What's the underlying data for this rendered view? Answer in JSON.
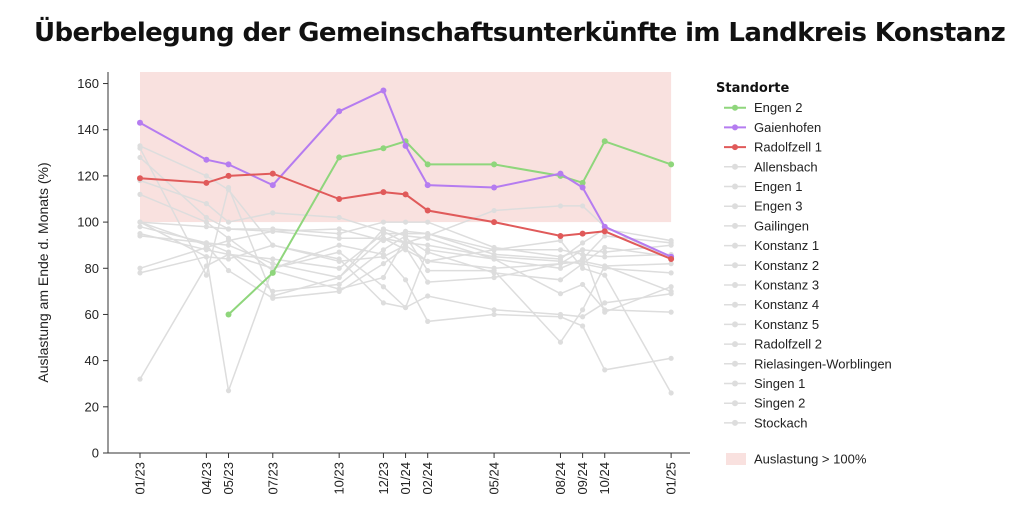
{
  "chart_data": {
    "type": "line",
    "title": "Überbelegung der Gemeinschaftsunterkünfte im Landkreis Konstanz",
    "ylabel": "Auslastung am Ende d. Monats (%)",
    "xlabel": "",
    "ylim": [
      0,
      165
    ],
    "yticks": [
      0,
      20,
      40,
      60,
      80,
      100,
      120,
      140,
      160
    ],
    "x": [
      "01/23",
      "04/23",
      "05/23",
      "07/23",
      "10/23",
      "12/23",
      "01/24",
      "02/24",
      "05/24",
      "08/24",
      "09/24",
      "10/24",
      "01/25"
    ],
    "x_month_index": [
      0,
      3,
      4,
      6,
      9,
      11,
      12,
      13,
      16,
      19,
      20,
      21,
      24
    ],
    "overcapacity_band": {
      "from": 100,
      "to": 165,
      "color": "#f9e1df",
      "label": "Auslastung > 100%"
    },
    "legend_title": "Standorte",
    "series": [
      {
        "name": "Allensbach",
        "color": "#dddddd",
        "highlight": false,
        "values": [
          100,
          98,
          97,
          97,
          95,
          100,
          100,
          100,
          89,
          85,
          88,
          87,
          90
        ]
      },
      {
        "name": "Engen 1",
        "color": "#dddddd",
        "highlight": false,
        "values": [
          95,
          88,
          86,
          84,
          80,
          95,
          95,
          95,
          88,
          88,
          86,
          85,
          86
        ]
      },
      {
        "name": "Engen 3",
        "color": "#dddddd",
        "highlight": false,
        "values": [
          128,
          102,
          97,
          96,
          93,
          93,
          91,
          90,
          85,
          83,
          82,
          80,
          78
        ]
      },
      {
        "name": "Gailingen",
        "color": "#dddddd",
        "highlight": false,
        "values": [
          98,
          91,
          90,
          82,
          76,
          97,
          94,
          93,
          84,
          80,
          84,
          94,
          91
        ]
      },
      {
        "name": "Konstanz 1",
        "color": "#dddddd",
        "highlight": false,
        "values": [
          80,
          89,
          92,
          96,
          97,
          92,
          96,
          95,
          86,
          84,
          91,
          97,
          92
        ]
      },
      {
        "name": "Konstanz 2",
        "color": "#dddddd",
        "highlight": false,
        "values": [
          78,
          85,
          84,
          90,
          83,
          85,
          90,
          83,
          80,
          82,
          83,
          81,
          82
        ]
      },
      {
        "name": "Konstanz 3",
        "color": "#dddddd",
        "highlight": false,
        "values": [
          112,
          100,
          93,
          79,
          71,
          76,
          93,
          87,
          78,
          75,
          82,
          89,
          85
        ]
      },
      {
        "name": "Konstanz 4",
        "color": "#dddddd",
        "highlight": false,
        "values": [
          32,
          81,
          86,
          80,
          87,
          72,
          63,
          68,
          62,
          60,
          59,
          65,
          69
        ]
      },
      {
        "name": "Konstanz 5",
        "color": "#dddddd",
        "highlight": false,
        "values": [
          118,
          108,
          100,
          104,
          102,
          96,
          91,
          94,
          105,
          107,
          107,
          98,
          84
        ]
      },
      {
        "name": "Radolfzell 2",
        "color": "#dddddd",
        "highlight": false,
        "values": [
          94,
          91,
          87,
          70,
          73,
          88,
          94,
          79,
          79,
          48,
          62,
          81,
          70
        ]
      },
      {
        "name": "Rielasingen-Worblingen",
        "color": "#dddddd",
        "highlight": false,
        "values": [
          100,
          90,
          79,
          67,
          70,
          82,
          89,
          74,
          76,
          82,
          88,
          61,
          72
        ]
      },
      {
        "name": "Singen 1",
        "color": "#dddddd",
        "highlight": false,
        "values": [
          100,
          85,
          27,
          80,
          90,
          86,
          75,
          57,
          60,
          59,
          55,
          36,
          41
        ]
      },
      {
        "name": "Singen 2",
        "color": "#dddddd",
        "highlight": false,
        "values": [
          133,
          120,
          114,
          90,
          84,
          65,
          63,
          88,
          84,
          69,
          73,
          62,
          61
        ]
      },
      {
        "name": "Stockach",
        "color": "#dddddd",
        "highlight": false,
        "values": [
          132,
          77,
          115,
          68,
          76,
          93,
          88,
          83,
          88,
          92,
          80,
          77,
          26
        ]
      },
      {
        "name": "Engen 2",
        "color": "#8fd67c",
        "highlight": true,
        "values": [
          null,
          null,
          60,
          78,
          128,
          132,
          135,
          125,
          125,
          120,
          117,
          135,
          125
        ]
      },
      {
        "name": "Gaienhofen",
        "color": "#b57cf0",
        "highlight": true,
        "values": [
          143,
          127,
          125,
          116,
          148,
          157,
          133,
          116,
          115,
          121,
          115,
          98,
          85
        ]
      },
      {
        "name": "Radolfzell 1",
        "color": "#e05a5a",
        "highlight": true,
        "values": [
          119,
          117,
          120,
          121,
          110,
          113,
          112,
          105,
          100,
          94,
          95,
          96,
          84
        ]
      }
    ],
    "legend_order": [
      "Engen 2",
      "Gaienhofen",
      "Radolfzell 1",
      "Allensbach",
      "Engen 1",
      "Engen 3",
      "Gailingen",
      "Konstanz 1",
      "Konstanz 2",
      "Konstanz 3",
      "Konstanz 4",
      "Konstanz 5",
      "Radolfzell 2",
      "Rielasingen-Worblingen",
      "Singen 1",
      "Singen 2",
      "Stockach"
    ]
  }
}
